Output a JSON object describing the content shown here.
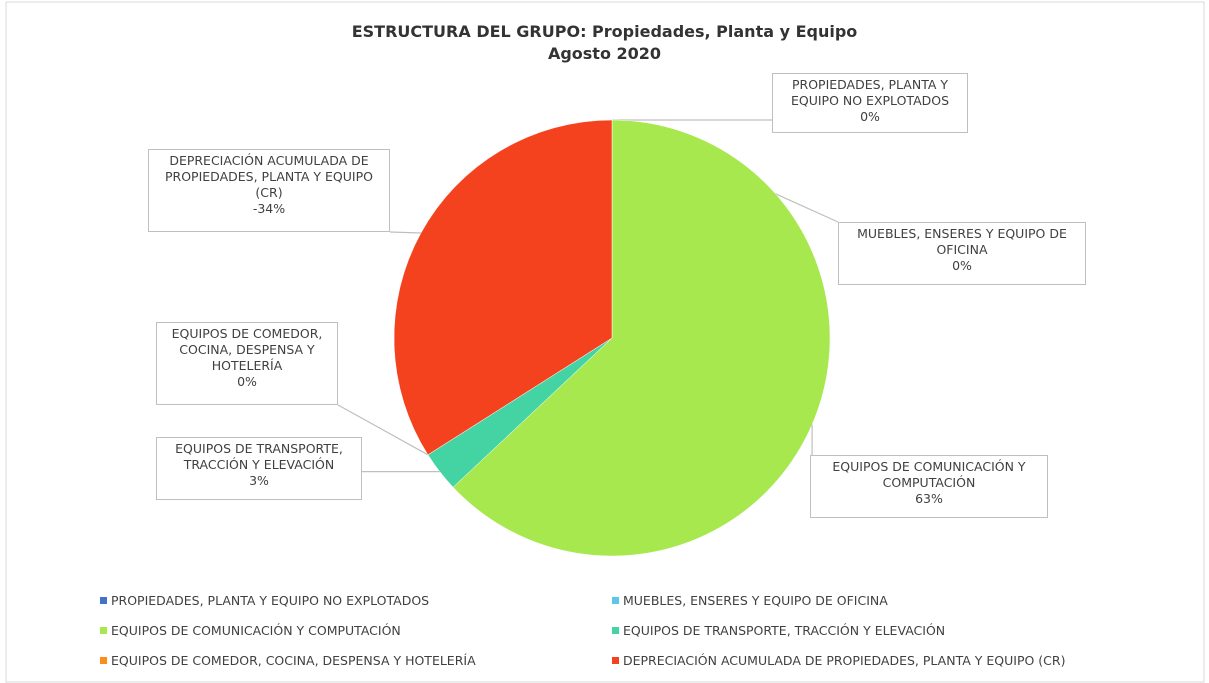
{
  "chart_data": {
    "type": "pie",
    "title": "ESTRUCTURA DEL GRUPO: Propiedades, Planta y Equipo",
    "subtitle": "Agosto 2020",
    "categories": [
      "PROPIEDADES, PLANTA Y EQUIPO NO EXPLOTADOS",
      "MUEBLES, ENSERES Y EQUIPO DE OFICINA",
      "EQUIPOS DE COMUNICACIÓN Y COMPUTACIÓN",
      "EQUIPOS DE TRANSPORTE, TRACCIÓN Y ELEVACIÓN",
      "EQUIPOS DE COMEDOR, COCINA, DESPENSA Y HOTELERÍA",
      "DEPRECIACIÓN ACUMULADA DE PROPIEDADES, PLANTA Y EQUIPO (CR)"
    ],
    "values": [
      0,
      0,
      63,
      3,
      0,
      -34
    ],
    "value_labels": [
      "0%",
      "0%",
      "63%",
      "3%",
      "0%",
      "-34%"
    ],
    "colors": [
      "#4472c4",
      "#5bc8ea",
      "#a6e84e",
      "#44d4a4",
      "#ff8c1a",
      "#f5421e"
    ],
    "legend": "bottom"
  }
}
